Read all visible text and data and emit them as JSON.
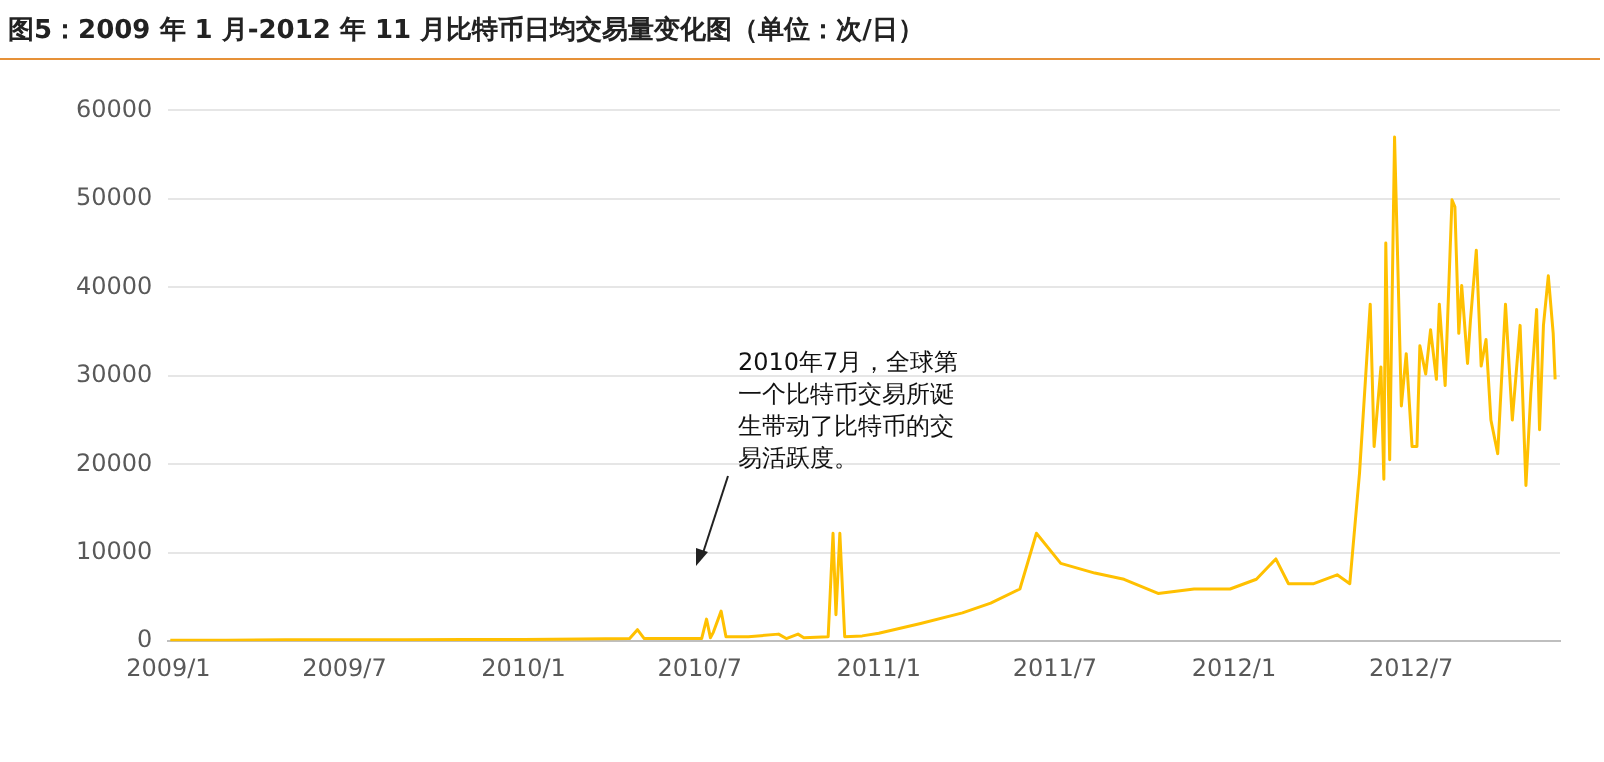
{
  "chart_data": {
    "type": "line",
    "title": "图5：2009 年 1 月-2012 年 11 月比特币日均交易量变化图（单位：次/日）",
    "annotations": [
      "2010年7月，全球第一个比特币交易所诞生带动了比特币的交易活跃度。"
    ],
    "series": [
      {
        "color": "#ffc000",
        "x": [
          "2009-01-03",
          "2009-03-01",
          "2009-05-01",
          "2009-07-01",
          "2009-09-01",
          "2009-11-01",
          "2010-01-01",
          "2010-03-01",
          "2010-04-20",
          "2010-04-28",
          "2010-05-05",
          "2010-06-15",
          "2010-07-03",
          "2010-07-08",
          "2010-07-12",
          "2010-07-15",
          "2010-07-23",
          "2010-07-28",
          "2010-08-20",
          "2010-09-20",
          "2010-09-28",
          "2010-10-10",
          "2010-10-16",
          "2010-11-10",
          "2010-11-15",
          "2010-11-18",
          "2010-11-22",
          "2010-11-27",
          "2010-12-15",
          "2011-01-01",
          "2011-02-13",
          "2011-03-28",
          "2011-04-26",
          "2011-05-26",
          "2011-06-12",
          "2011-07-07",
          "2011-08-11",
          "2011-09-10",
          "2011-10-15",
          "2011-11-21",
          "2011-12-28",
          "2012-01-24",
          "2012-02-13",
          "2012-02-26",
          "2012-03-23",
          "2012-04-16",
          "2012-04-29",
          "2012-05-09",
          "2012-05-20",
          "2012-05-24",
          "2012-05-31",
          "2012-06-03",
          "2012-06-05",
          "2012-06-09",
          "2012-06-14",
          "2012-06-21",
          "2012-06-26",
          "2012-07-02",
          "2012-07-07",
          "2012-07-10",
          "2012-07-16",
          "2012-07-21",
          "2012-07-27",
          "2012-07-30",
          "2012-08-05",
          "2012-08-12",
          "2012-08-15",
          "2012-08-19",
          "2012-08-22",
          "2012-08-28",
          "2012-08-31",
          "2012-09-06",
          "2012-09-11",
          "2012-09-16",
          "2012-09-21",
          "2012-09-28",
          "2012-10-06",
          "2012-10-13",
          "2012-10-21",
          "2012-10-27",
          "2012-11-01",
          "2012-11-07",
          "2012-11-10",
          "2012-11-14",
          "2012-11-19",
          "2012-11-24",
          "2012-11-26"
        ],
        "values": [
          100,
          100,
          150,
          150,
          150,
          200,
          200,
          250,
          300,
          1300,
          300,
          300,
          300,
          2500,
          400,
          1000,
          3400,
          500,
          500,
          800,
          300,
          800,
          400,
          500,
          12200,
          3000,
          12200,
          500,
          600,
          900,
          2000,
          3200,
          4300,
          5900,
          12200,
          8800,
          7700,
          7000,
          5400,
          5900,
          5900,
          7000,
          9300,
          6500,
          6500,
          7500,
          6500,
          19000,
          38100,
          22000,
          31000,
          18300,
          45000,
          20500,
          57000,
          26600,
          32500,
          22000,
          22000,
          33400,
          30200,
          35200,
          29600,
          38100,
          28900,
          49900,
          49100,
          34800,
          40200,
          31400,
          36300,
          44200,
          31100,
          34100,
          25000,
          21200,
          38100,
          25000,
          35700,
          17600,
          28000,
          37500,
          23900,
          35700,
          41300,
          34800,
          29600
        ]
      }
    ],
    "xlim": [
      "2009-01-01",
      "2012-12-01"
    ],
    "xticks": [
      {
        "value": "2009-01",
        "label": "2009/1"
      },
      {
        "value": "2009-07",
        "label": "2009/7"
      },
      {
        "value": "2010-01",
        "label": "2010/1"
      },
      {
        "value": "2010-07",
        "label": "2010/7"
      },
      {
        "value": "2011-01",
        "label": "2011/1"
      },
      {
        "value": "2011-07",
        "label": "2011/7"
      },
      {
        "value": "2012-01",
        "label": "2012/1"
      },
      {
        "value": "2012-07",
        "label": "2012/7"
      }
    ],
    "ylim": [
      0,
      60000
    ],
    "yticks": [
      0,
      10000,
      20000,
      30000,
      40000,
      50000,
      60000
    ],
    "grid": "y",
    "legend": false,
    "marker": "none",
    "line_style": "solid"
  }
}
